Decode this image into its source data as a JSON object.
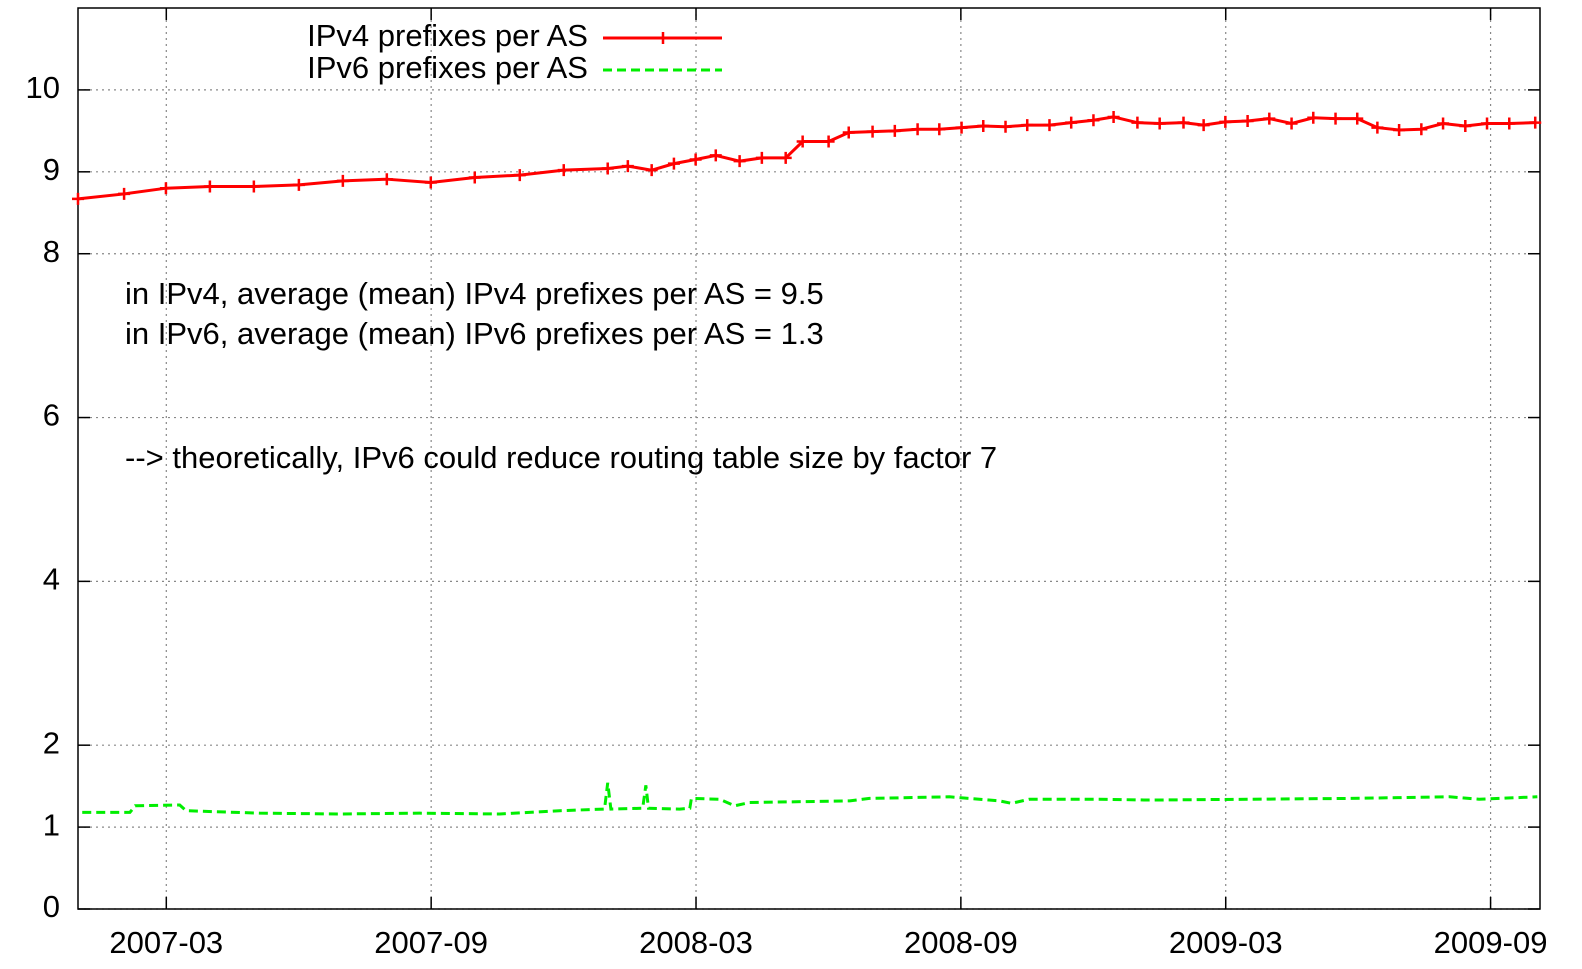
{
  "chart_data": {
    "type": "line",
    "annotations": [
      "in IPv4, average (mean) IPv4 prefixes per AS = 9.5",
      "in IPv6, average (mean) IPv6 prefixes per AS = 1.3",
      "--> theoretically, IPv6 could reduce routing table size by factor 7"
    ],
    "xlim": [
      2007.0,
      2009.76
    ],
    "xticks": [
      {
        "value": 2007.1667,
        "label": "2007-03"
      },
      {
        "value": 2007.6667,
        "label": "2007-09"
      },
      {
        "value": 2008.1667,
        "label": "2008-03"
      },
      {
        "value": 2008.6667,
        "label": "2008-09"
      },
      {
        "value": 2009.1667,
        "label": "2009-03"
      },
      {
        "value": 2009.6667,
        "label": "2009-09"
      }
    ],
    "ylim": [
      0,
      11
    ],
    "yticks": [
      0,
      1,
      2,
      4,
      6,
      8,
      9,
      10
    ],
    "grid": true,
    "legend": "top-center",
    "series": [
      {
        "name": "IPv4 prefixes per AS",
        "color": "#ff0000",
        "style": "solid-cross",
        "x": [
          2007.0,
          2007.087,
          2007.166,
          2007.249,
          2007.332,
          2007.417,
          2007.5,
          2007.583,
          2007.666,
          2007.749,
          2007.834,
          2007.917,
          2008.0,
          2008.038,
          2008.083,
          2008.125,
          2008.166,
          2008.204,
          2008.249,
          2008.291,
          2008.336,
          2008.368,
          2008.417,
          2008.455,
          2008.5,
          2008.542,
          2008.585,
          2008.626,
          2008.668,
          2008.709,
          2008.751,
          2008.792,
          2008.834,
          2008.875,
          2008.917,
          2008.955,
          2009.0,
          2009.042,
          2009.087,
          2009.125,
          2009.166,
          2009.208,
          2009.249,
          2009.291,
          2009.332,
          2009.374,
          2009.415,
          2009.453,
          2009.494,
          2009.536,
          2009.577,
          2009.619,
          2009.66,
          2009.702,
          2009.751
        ],
        "values": [
          8.67,
          8.73,
          8.8,
          8.82,
          8.82,
          8.84,
          8.89,
          8.91,
          8.87,
          8.93,
          8.96,
          9.02,
          9.04,
          9.07,
          9.02,
          9.1,
          9.15,
          9.2,
          9.13,
          9.17,
          9.17,
          9.37,
          9.37,
          9.48,
          9.49,
          9.5,
          9.52,
          9.52,
          9.54,
          9.56,
          9.55,
          9.57,
          9.57,
          9.6,
          9.63,
          9.67,
          9.6,
          9.59,
          9.6,
          9.57,
          9.61,
          9.62,
          9.65,
          9.59,
          9.66,
          9.65,
          9.65,
          9.54,
          9.51,
          9.52,
          9.59,
          9.56,
          9.59,
          9.59,
          9.6
        ]
      },
      {
        "name": "IPv6 prefixes per AS",
        "color": "#00ee00",
        "style": "dashed",
        "x": [
          2007.008,
          2007.098,
          2007.108,
          2007.192,
          2007.204,
          2007.343,
          2007.494,
          2007.645,
          2007.796,
          2007.909,
          2007.994,
          2008.0,
          2008.006,
          2008.066,
          2008.072,
          2008.077,
          2008.136,
          2008.155,
          2008.158,
          2008.211,
          2008.24,
          2008.268,
          2008.457,
          2008.494,
          2008.645,
          2008.74,
          2008.762,
          2008.796,
          2008.928,
          2009.023,
          2009.211,
          2009.4,
          2009.589,
          2009.645,
          2009.755
        ],
        "values": [
          1.18,
          1.18,
          1.26,
          1.27,
          1.2,
          1.17,
          1.16,
          1.17,
          1.16,
          1.2,
          1.22,
          1.54,
          1.22,
          1.23,
          1.51,
          1.23,
          1.22,
          1.23,
          1.35,
          1.34,
          1.26,
          1.3,
          1.32,
          1.35,
          1.37,
          1.32,
          1.29,
          1.34,
          1.34,
          1.33,
          1.34,
          1.35,
          1.37,
          1.34,
          1.37
        ]
      }
    ]
  }
}
